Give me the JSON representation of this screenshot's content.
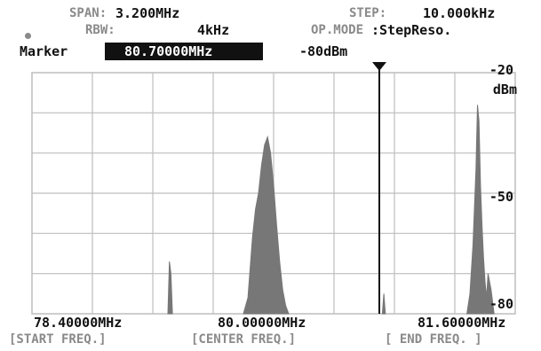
{
  "header": {
    "span_label": "SPAN:",
    "span_value": "3.200MHz",
    "rbw_label": "RBW:",
    "rbw_value": "4kHz",
    "step_label": "STEP:",
    "step_value": "10.000kHz",
    "opmode_label": "OP.MODE",
    "opmode_value": ":StepReso.",
    "marker_label": "Marker",
    "marker_freq": "80.70000MHz",
    "marker_level": "-80dBm"
  },
  "footer": {
    "start_freq": "78.40000MHz",
    "center_freq": "80.00000MHz",
    "end_freq": "81.60000MHz",
    "start_label": "[START FREQ.]",
    "center_label": "[CENTER FREQ.]",
    "end_label": "[ END FREQ. ]"
  },
  "colors": {
    "lcd_dark": "#111111",
    "lcd_dim": "#8a8a8a",
    "trace": "#777777",
    "grid": "#bdbdbd"
  },
  "chart_data": {
    "type": "area",
    "x_unit": "MHz",
    "y_unit": "dBm",
    "xlim": [
      78.4,
      81.6
    ],
    "ylim": [
      -80,
      -20
    ],
    "y_tick_labels": [
      "-20",
      "-50",
      "-80"
    ],
    "y_unit_label": "dBm",
    "grid": true,
    "marker_x": 80.7,
    "series": [
      {
        "x": [
          79.3,
          79.31,
          79.32,
          79.33
        ],
        "y": [
          -80,
          -67,
          -70,
          -80
        ]
      },
      {
        "x": [
          79.8,
          79.83,
          79.86,
          79.88,
          79.9,
          79.92,
          79.94,
          79.96,
          79.98,
          80.0,
          80.02,
          80.04,
          80.06,
          80.08,
          80.1
        ],
        "y": [
          -80,
          -76,
          -61,
          -54,
          -50,
          -43,
          -38,
          -36,
          -40,
          -48,
          -58,
          -67,
          -74,
          -78,
          -80
        ]
      },
      {
        "x": [
          80.72,
          80.73,
          80.74
        ],
        "y": [
          -80,
          -75,
          -80
        ]
      },
      {
        "x": [
          81.28,
          81.3,
          81.32,
          81.34,
          81.35,
          81.36,
          81.37,
          81.38,
          81.39,
          81.4,
          81.41,
          81.42,
          81.44,
          81.46
        ],
        "y": [
          -80,
          -75,
          -63,
          -44,
          -28,
          -32,
          -48,
          -58,
          -66,
          -72,
          -76,
          -70,
          -74,
          -80
        ]
      }
    ]
  }
}
